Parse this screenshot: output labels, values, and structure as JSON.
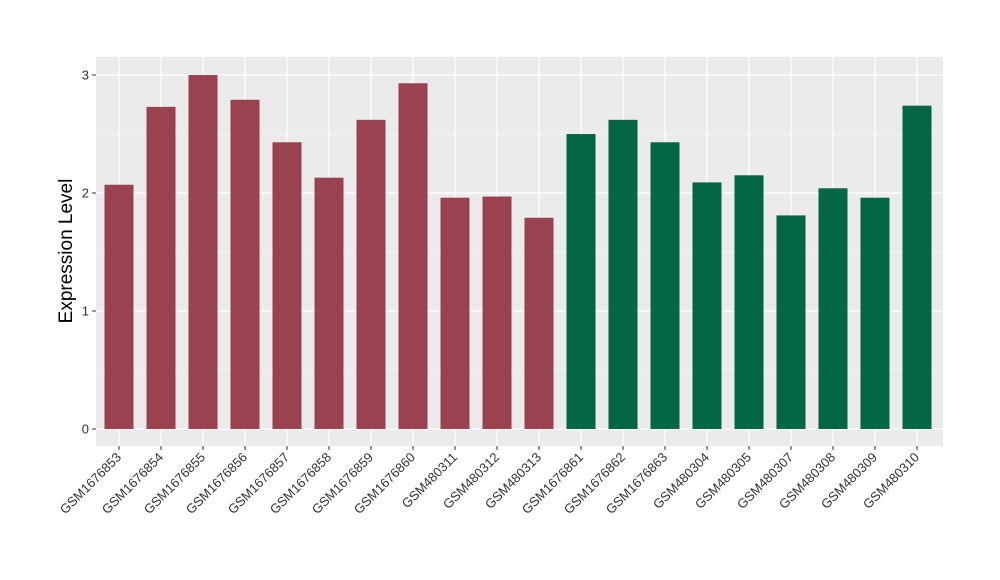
{
  "chart_data": {
    "type": "bar",
    "title": "",
    "xlabel": "",
    "ylabel": "Expression Level",
    "ylim": [
      0,
      3.15
    ],
    "yticks": [
      0,
      1,
      2,
      3
    ],
    "grid": true,
    "legend": "none",
    "categories": [
      "GSM1676853",
      "GSM1676854",
      "GSM1676855",
      "GSM1676856",
      "GSM1676857",
      "GSM1676858",
      "GSM1676859",
      "GSM1676860",
      "GSM480311",
      "GSM480312",
      "GSM480313",
      "GSM1676861",
      "GSM1676862",
      "GSM1676863",
      "GSM480304",
      "GSM480305",
      "GSM480307",
      "GSM480308",
      "GSM480309",
      "GSM480310"
    ],
    "values": [
      2.07,
      2.73,
      3.0,
      2.79,
      2.43,
      2.13,
      2.62,
      2.93,
      1.96,
      1.97,
      1.79,
      2.5,
      2.62,
      2.43,
      2.09,
      2.15,
      1.81,
      2.04,
      1.96,
      2.74
    ],
    "group": [
      0,
      0,
      0,
      0,
      0,
      0,
      0,
      0,
      0,
      0,
      0,
      1,
      1,
      1,
      1,
      1,
      1,
      1,
      1,
      1
    ],
    "colors": [
      "#9a4250",
      "#036644"
    ],
    "panel_background": "#ebebeb",
    "grid_color": "#ffffff"
  }
}
